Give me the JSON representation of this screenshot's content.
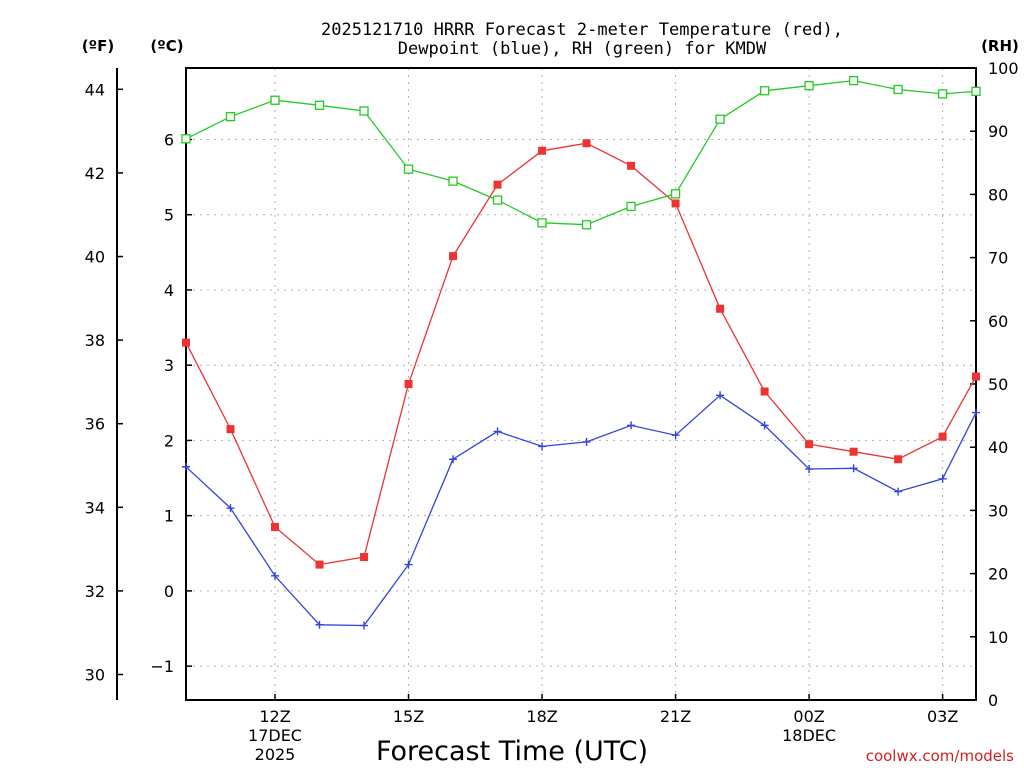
{
  "chart_data": {
    "type": "line",
    "title": [
      "2025121710 HRRR Forecast 2-meter Temperature (red),",
      "Dewpoint (blue), RH (green) for KMDW"
    ],
    "xlabel": "Forecast Time (UTC)",
    "credit": "coolwx.com/models",
    "unit_labels": {
      "fahrenheit": "(ºF)",
      "celsius": "(ºC)",
      "rh": "(RH)"
    },
    "x": [
      10,
      11,
      12,
      13,
      14,
      15,
      16,
      17,
      18,
      19,
      20,
      21,
      22,
      23,
      24,
      25,
      26,
      27,
      27.75
    ],
    "xlim": [
      10,
      27.75
    ],
    "x_ticks": [
      {
        "hour": 12,
        "lines": [
          "12Z",
          "17DEC",
          "2025"
        ]
      },
      {
        "hour": 15,
        "lines": [
          "15Z"
        ]
      },
      {
        "hour": 18,
        "lines": [
          "18Z"
        ]
      },
      {
        "hour": 21,
        "lines": [
          "21Z"
        ]
      },
      {
        "hour": 24,
        "lines": [
          "00Z",
          "18DEC"
        ]
      },
      {
        "hour": 27,
        "lines": [
          "03Z"
        ]
      }
    ],
    "ylim_celsius": [
      -1.45,
      6.95
    ],
    "ylim_fahrenheit": [
      29.39,
      44.51
    ],
    "ylim_rh": [
      0,
      100
    ],
    "yticks_celsius": [
      -1,
      0,
      1,
      2,
      3,
      4,
      5,
      6
    ],
    "yticks_celsius_labels": [
      "−1",
      "0",
      "1",
      "2",
      "3",
      "4",
      "5",
      "6"
    ],
    "yticks_fahrenheit": [
      30,
      32,
      34,
      36,
      38,
      40,
      42,
      44
    ],
    "yticks_fahrenheit_labels": [
      "30",
      "32",
      "34",
      "36",
      "38",
      "40",
      "42",
      "44"
    ],
    "yticks_rh": [
      0,
      10,
      20,
      30,
      40,
      50,
      60,
      70,
      80,
      90,
      100
    ],
    "yticks_rh_labels": [
      "0",
      "10",
      "20",
      "30",
      "40",
      "50",
      "60",
      "70",
      "80",
      "90",
      "100"
    ],
    "grid": true,
    "series": [
      {
        "name": "Temperature",
        "axis": "celsius",
        "color": "#ee3333",
        "marker": "filled-square",
        "values": [
          3.3,
          2.15,
          0.85,
          0.35,
          0.45,
          2.75,
          4.45,
          5.4,
          5.85,
          5.95,
          5.65,
          5.15,
          3.75,
          2.65,
          1.95,
          1.85,
          1.75,
          2.05,
          2.85
        ]
      },
      {
        "name": "Dewpoint",
        "axis": "celsius",
        "color": "#3344dd",
        "marker": "plus",
        "values": [
          1.65,
          1.1,
          0.2,
          -0.45,
          -0.46,
          0.35,
          1.75,
          2.12,
          1.92,
          1.98,
          2.2,
          2.07,
          2.6,
          2.2,
          1.62,
          1.63,
          1.32,
          1.49,
          2.37
        ]
      },
      {
        "name": "RH",
        "axis": "rh",
        "color": "#22cc22",
        "marker": "open-square",
        "values": [
          88.8,
          92.3,
          94.9,
          94.1,
          93.2,
          84.0,
          82.1,
          79.1,
          75.5,
          75.2,
          78.1,
          80.1,
          91.9,
          96.4,
          97.2,
          98.0,
          96.6,
          95.9,
          96.3
        ]
      }
    ]
  }
}
